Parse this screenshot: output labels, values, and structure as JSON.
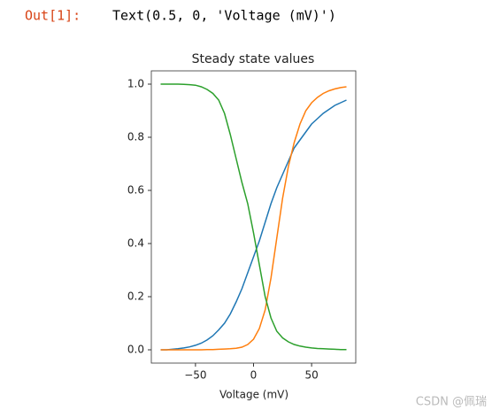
{
  "output": {
    "prompt": "Out[1]:",
    "text": "Text(0.5, 0, 'Voltage (mV)')"
  },
  "watermark": "CSDN @佩瑞",
  "chart_data": {
    "type": "line",
    "title": "Steady state values",
    "x_label": "Voltage (mV)",
    "x": [
      -80,
      -75,
      -70,
      -65,
      -60,
      -55,
      -50,
      -45,
      -40,
      -35,
      -30,
      -25,
      -20,
      -15,
      -10,
      -5,
      0,
      5,
      10,
      15,
      20,
      25,
      30,
      35,
      40,
      45,
      50,
      55,
      60,
      65,
      70,
      75,
      80
    ],
    "series": [
      {
        "color": "#1f77b4",
        "values": [
          0.0,
          0.0,
          0.002,
          0.004,
          0.007,
          0.011,
          0.017,
          0.025,
          0.037,
          0.053,
          0.075,
          0.1,
          0.135,
          0.18,
          0.23,
          0.29,
          0.35,
          0.41,
          0.48,
          0.55,
          0.61,
          0.66,
          0.71,
          0.76,
          0.79,
          0.82,
          0.85,
          0.87,
          0.89,
          0.905,
          0.92,
          0.93,
          0.94
        ]
      },
      {
        "color": "#ff7f0e",
        "values": [
          0,
          0,
          0,
          0,
          0,
          0,
          0,
          0,
          0.001,
          0.001,
          0.002,
          0.003,
          0.004,
          0.006,
          0.01,
          0.02,
          0.04,
          0.08,
          0.15,
          0.27,
          0.42,
          0.57,
          0.69,
          0.78,
          0.85,
          0.9,
          0.93,
          0.95,
          0.965,
          0.975,
          0.982,
          0.987,
          0.99
        ]
      },
      {
        "color": "#2ca02c",
        "values": [
          1,
          1,
          1,
          1,
          0.999,
          0.998,
          0.996,
          0.99,
          0.98,
          0.965,
          0.94,
          0.89,
          0.81,
          0.72,
          0.63,
          0.55,
          0.44,
          0.32,
          0.2,
          0.12,
          0.07,
          0.045,
          0.03,
          0.02,
          0.014,
          0.01,
          0.007,
          0.005,
          0.004,
          0.003,
          0.002,
          0.001,
          0.001
        ]
      }
    ],
    "xlim": [
      -88,
      88
    ],
    "ylim": [
      -0.05,
      1.05
    ],
    "xticks": [
      {
        "value": -50,
        "label": "−50"
      },
      0,
      50
    ],
    "yticks": [
      {
        "value": 0,
        "label": "0.0"
      },
      0.2,
      0.4,
      0.6,
      0.8,
      {
        "value": 1,
        "label": "1.0"
      }
    ],
    "grid": false
  }
}
